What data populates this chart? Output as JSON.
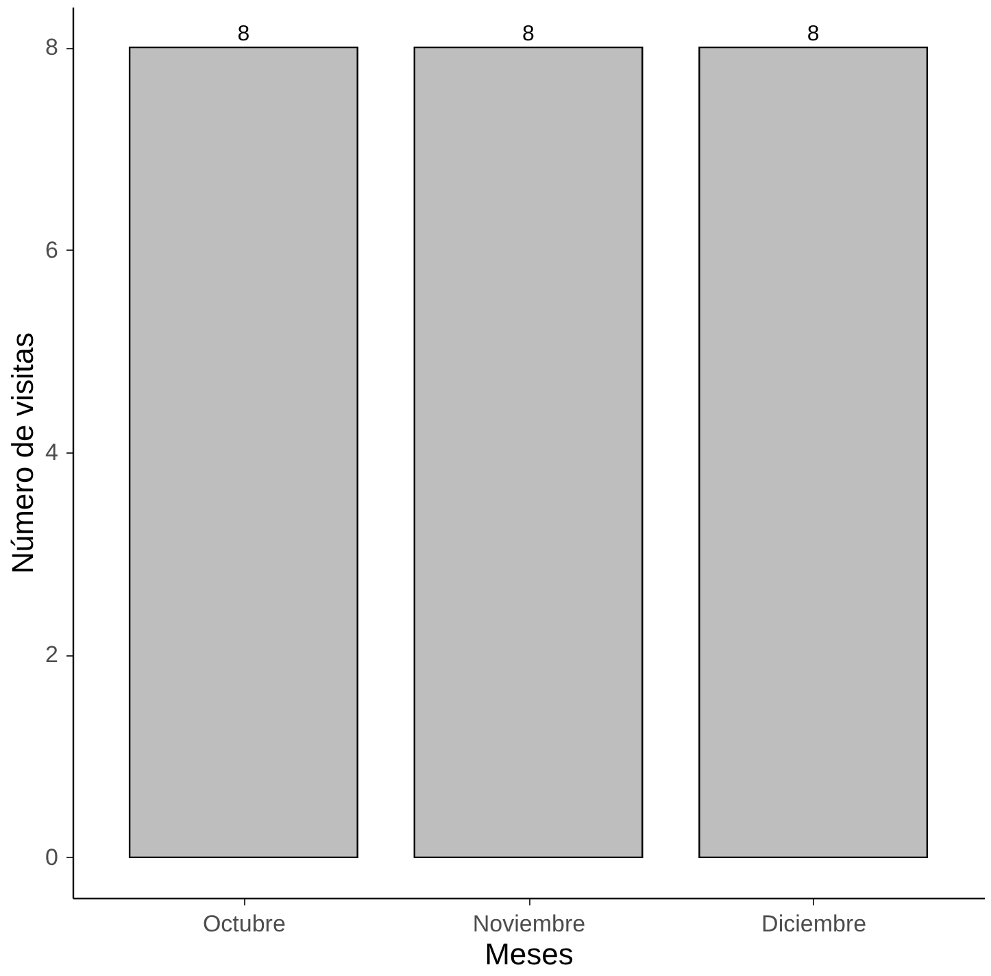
{
  "chart_data": {
    "type": "bar",
    "xlabel": "Meses",
    "ylabel": "Número de visitas",
    "categories": [
      "Octubre",
      "Noviembre",
      "Diciembre"
    ],
    "values": [
      8,
      8,
      8
    ],
    "color": "#bebebe",
    "ylim": [
      -0.4,
      8.4
    ],
    "yticks": [
      0,
      2,
      4,
      6,
      8
    ],
    "grid": false,
    "data_labels": true
  }
}
